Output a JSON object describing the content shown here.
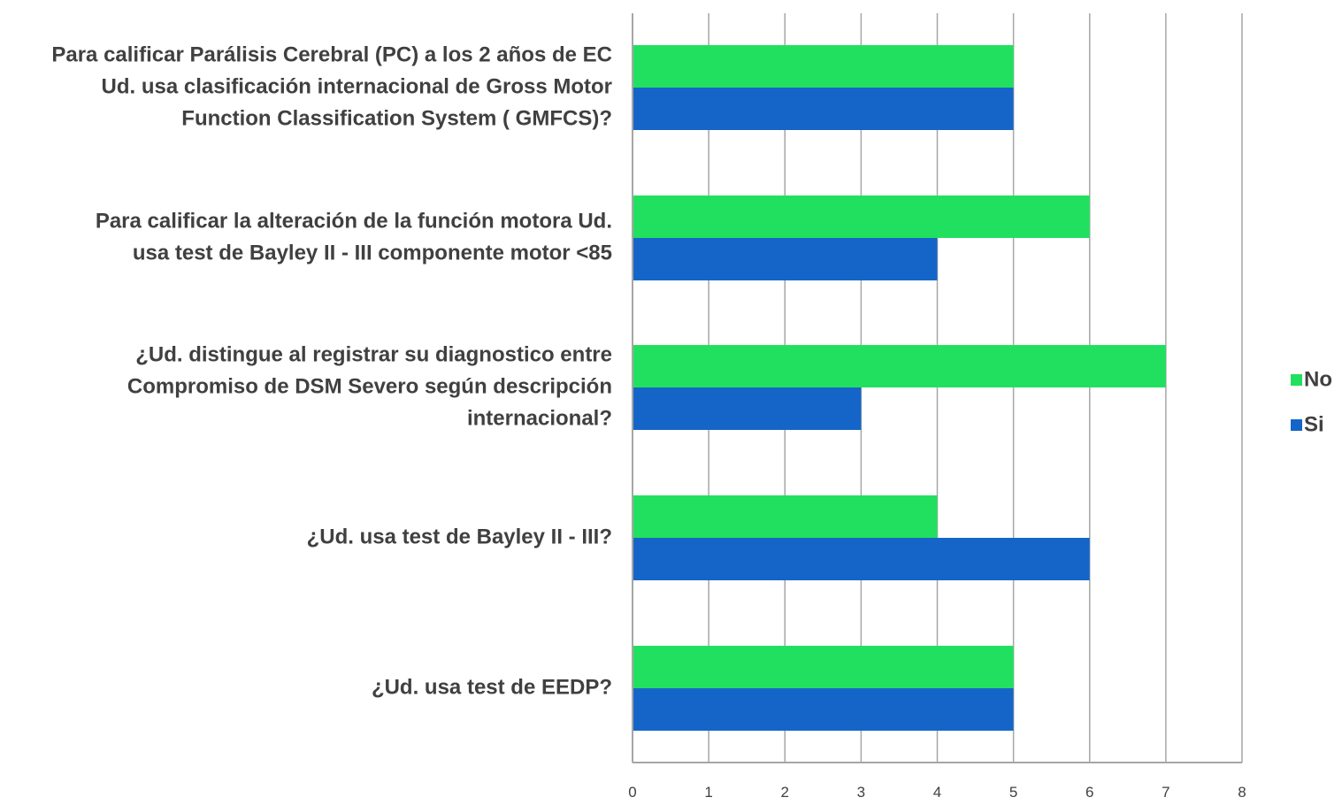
{
  "chart_data": {
    "type": "bar",
    "orientation": "horizontal",
    "categories": [
      "Para calificar Parálisis Cerebral (PC) a los 2 años de EC Ud. usa clasificación internacional de Gross Motor Function Classification System ( GMFCS)?",
      "Para calificar la alteración de la función motora Ud. usa test de Bayley II - III componente motor <85",
      "¿Ud. distingue al registrar su diagnostico entre Compromiso de DSM Severo según descripción internacional?",
      "¿Ud. usa test de Bayley II - III?",
      "¿Ud. usa test de EEDP?"
    ],
    "category_lines": [
      [
        "Para calificar Parálisis Cerebral (PC) a los 2 años de EC",
        "Ud. usa clasificación internacional de Gross Motor",
        "Function Classification System ( GMFCS)?"
      ],
      [
        "Para calificar la alteración de la función motora Ud.",
        "usa test de Bayley II - III componente motor <85"
      ],
      [
        "¿Ud. distingue al registrar su diagnostico entre",
        "Compromiso de DSM Severo según descripción",
        "internacional?"
      ],
      [
        "¿Ud. usa test de Bayley II - III?"
      ],
      [
        "¿Ud. usa test de EEDP?"
      ]
    ],
    "series": [
      {
        "name": "No",
        "color": "#22e05f",
        "values": [
          5,
          6,
          7,
          4,
          5
        ]
      },
      {
        "name": "Si",
        "color": "#1565c8",
        "values": [
          5,
          4,
          3,
          6,
          5
        ]
      }
    ],
    "legend_order": [
      "No",
      "Si"
    ],
    "xlim": [
      0,
      8
    ],
    "xticks": [
      "0",
      "1",
      "2",
      "3",
      "4",
      "5",
      "6",
      "7",
      "8"
    ],
    "grid": true,
    "legend_position": "right",
    "title": "",
    "xlabel": "",
    "ylabel": "",
    "colors": {
      "gridline": "#a6a6a6",
      "text": "#404040"
    }
  }
}
